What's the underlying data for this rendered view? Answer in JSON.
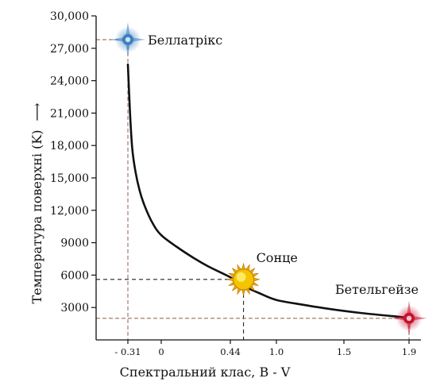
{
  "chart_data": {
    "type": "line",
    "title": "",
    "xlabel": "Спектральний клас, B - V",
    "ylabel": "Температура поверхні (K)",
    "ylabel_arrow": "⟶",
    "xlim": [
      -0.37,
      1.95
    ],
    "ylim": [
      0,
      30000
    ],
    "x_ticks": [
      -0.31,
      0,
      0.44,
      1.0,
      1.5,
      1.9
    ],
    "x_tick_labels": [
      "- 0.31",
      "0",
      "0.44",
      "1.0",
      "1.5",
      "1.9"
    ],
    "y_ticks": [
      3000,
      6000,
      9000,
      12000,
      15000,
      18000,
      21000,
      24000,
      27000,
      30000
    ],
    "y_tick_labels": [
      "3000",
      "6000",
      "9000",
      "12,000",
      "15,000",
      "18,000",
      "21,000",
      "24,000",
      "27,000",
      "30,000"
    ],
    "grid": false,
    "curve": {
      "x": [
        -0.31,
        -0.29,
        -0.27,
        -0.24,
        -0.2,
        -0.15,
        -0.08,
        0,
        0.1,
        0.2,
        0.3,
        0.44,
        0.6,
        0.8,
        1.0,
        1.2,
        1.4,
        1.6,
        1.8,
        1.9
      ],
      "y": [
        25500,
        21000,
        17800,
        15600,
        13800,
        12300,
        10800,
        9700,
        8600,
        7650,
        6800,
        5800,
        5000,
        4300,
        3700,
        3250,
        2850,
        2500,
        2200,
        2050
      ]
    },
    "stars": [
      {
        "name": "Беллатрікс",
        "x": -0.31,
        "y": 27800,
        "color": "#3a7fc1"
      },
      {
        "name": "Сонце",
        "x": 0.6,
        "y": 5600,
        "color": "#f5c400"
      },
      {
        "name": "Бетельгейзе",
        "x": 1.9,
        "y": 2000,
        "color": "#c8102e"
      }
    ],
    "colors": {
      "curve": "#111111",
      "reference_lines": "#9a6c5a",
      "sun_reference_lines": "#222222"
    }
  }
}
